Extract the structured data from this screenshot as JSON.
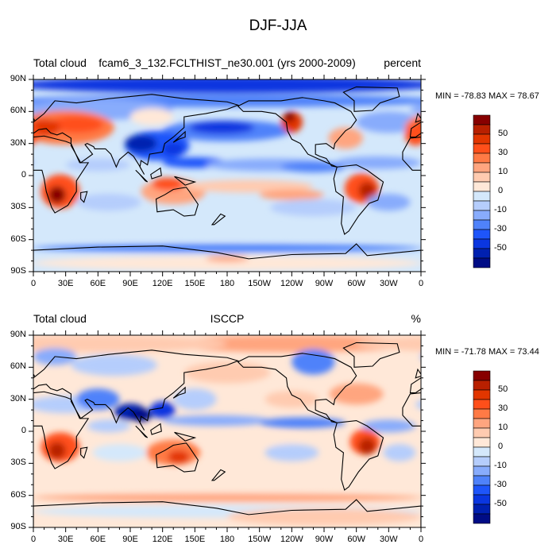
{
  "figure_title": "DJF-JJA",
  "palette": [
    "#870000",
    "#b82000",
    "#e23600",
    "#ff4f1a",
    "#ff7a45",
    "#ffa57f",
    "#ffcbb0",
    "#ffe8d8",
    "#d4e8fb",
    "#b5cdfc",
    "#88acfc",
    "#4f82fa",
    "#1e55fa",
    "#0a36e0",
    "#0020b0",
    "#000c85"
  ],
  "contour_levels": [
    -60,
    -50,
    -40,
    -30,
    -20,
    -10,
    -5,
    0,
    5,
    10,
    20,
    30,
    40,
    50,
    60
  ],
  "colorbar_labels": [
    "50",
    "30",
    "10",
    "0",
    "-10",
    "-30",
    "-50"
  ],
  "lon_ticks": [
    "0",
    "30E",
    "60E",
    "90E",
    "120E",
    "150E",
    "180",
    "150W",
    "120W",
    "90W",
    "60W",
    "30W",
    "0"
  ],
  "lat_ticks": [
    "90N",
    "60N",
    "30N",
    "0",
    "30S",
    "60S",
    "90S"
  ],
  "panels": [
    {
      "left_title": "Total cloud",
      "center_title": "fcam6_3_132.FCLTHIST_ne30.001 (yrs 2000-2009)",
      "right_title": "percent",
      "minmax": "MIN = -78.83 MAX =  78.67"
    },
    {
      "left_title": "Total cloud",
      "center_title": "ISCCP",
      "right_title": "%",
      "minmax": "MIN = -71.78 MAX =  73.44"
    }
  ]
}
